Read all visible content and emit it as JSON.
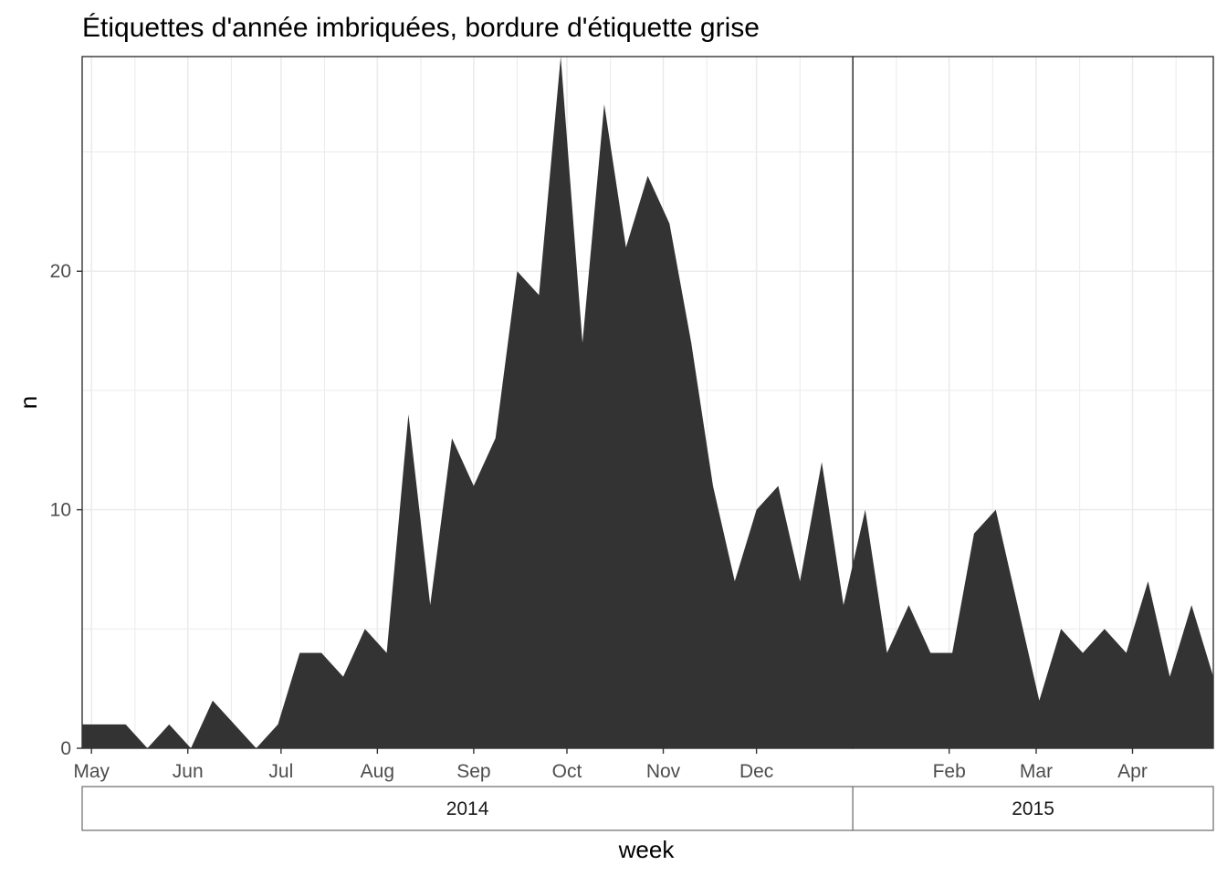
{
  "chart_data": {
    "type": "area",
    "title": "Étiquettes d'année imbriquées, bordure d'étiquette grise",
    "xlabel": "week",
    "ylabel": "n",
    "x_start": "2014-04-28",
    "x_end": "2015-04-27",
    "ylim": [
      0,
      29
    ],
    "yticks": [
      0,
      10,
      20
    ],
    "grid": true,
    "colors": {
      "fill": "#333333",
      "grid": "#ebebeb",
      "panel_border": "#333333",
      "strip_border": "#7f7f7f",
      "text": "#4d4d4d"
    },
    "month_ticks": [
      {
        "label": "May",
        "date": "2014-05-01"
      },
      {
        "label": "Jun",
        "date": "2014-06-01"
      },
      {
        "label": "Jul",
        "date": "2014-07-01"
      },
      {
        "label": "Aug",
        "date": "2014-08-01"
      },
      {
        "label": "Sep",
        "date": "2014-09-01"
      },
      {
        "label": "Oct",
        "date": "2014-10-01"
      },
      {
        "label": "Nov",
        "date": "2014-11-01"
      },
      {
        "label": "Dec",
        "date": "2014-12-01"
      },
      {
        "label": "Feb",
        "date": "2015-02-01"
      },
      {
        "label": "Mar",
        "date": "2015-03-01"
      },
      {
        "label": "Apr",
        "date": "2015-04-01"
      }
    ],
    "year_boundary": "2015-01-01",
    "year_strips": [
      {
        "label": "2014",
        "from": "2014-04-28",
        "to": "2015-01-01"
      },
      {
        "label": "2015",
        "from": "2015-01-01",
        "to": "2015-04-27"
      }
    ],
    "series": [
      {
        "x": [
          "2014-04-28",
          "2014-05-05",
          "2014-05-12",
          "2014-05-19",
          "2014-05-26",
          "2014-06-02",
          "2014-06-09",
          "2014-06-16",
          "2014-06-23",
          "2014-06-30",
          "2014-07-07",
          "2014-07-14",
          "2014-07-21",
          "2014-07-28",
          "2014-08-04",
          "2014-08-11",
          "2014-08-18",
          "2014-08-25",
          "2014-09-01",
          "2014-09-08",
          "2014-09-15",
          "2014-09-22",
          "2014-09-29",
          "2014-10-06",
          "2014-10-13",
          "2014-10-20",
          "2014-10-27",
          "2014-11-03",
          "2014-11-10",
          "2014-11-17",
          "2014-11-24",
          "2014-12-01",
          "2014-12-08",
          "2014-12-15",
          "2014-12-22",
          "2014-12-29",
          "2015-01-05",
          "2015-01-12",
          "2015-01-19",
          "2015-01-26",
          "2015-02-02",
          "2015-02-09",
          "2015-02-16",
          "2015-02-23",
          "2015-03-02",
          "2015-03-09",
          "2015-03-16",
          "2015-03-23",
          "2015-03-30",
          "2015-04-06",
          "2015-04-13",
          "2015-04-20",
          "2015-04-27"
        ],
        "values": [
          1,
          1,
          1,
          0,
          1,
          0,
          2,
          1,
          0,
          1,
          4,
          4,
          3,
          5,
          4,
          14,
          6,
          13,
          11,
          13,
          20,
          19,
          29,
          17,
          27,
          21,
          24,
          22,
          17,
          11,
          7,
          10,
          11,
          7,
          12,
          6,
          10,
          4,
          6,
          4,
          4,
          9,
          10,
          6,
          2,
          5,
          4,
          5,
          4,
          7,
          3,
          6,
          3
        ]
      }
    ]
  }
}
